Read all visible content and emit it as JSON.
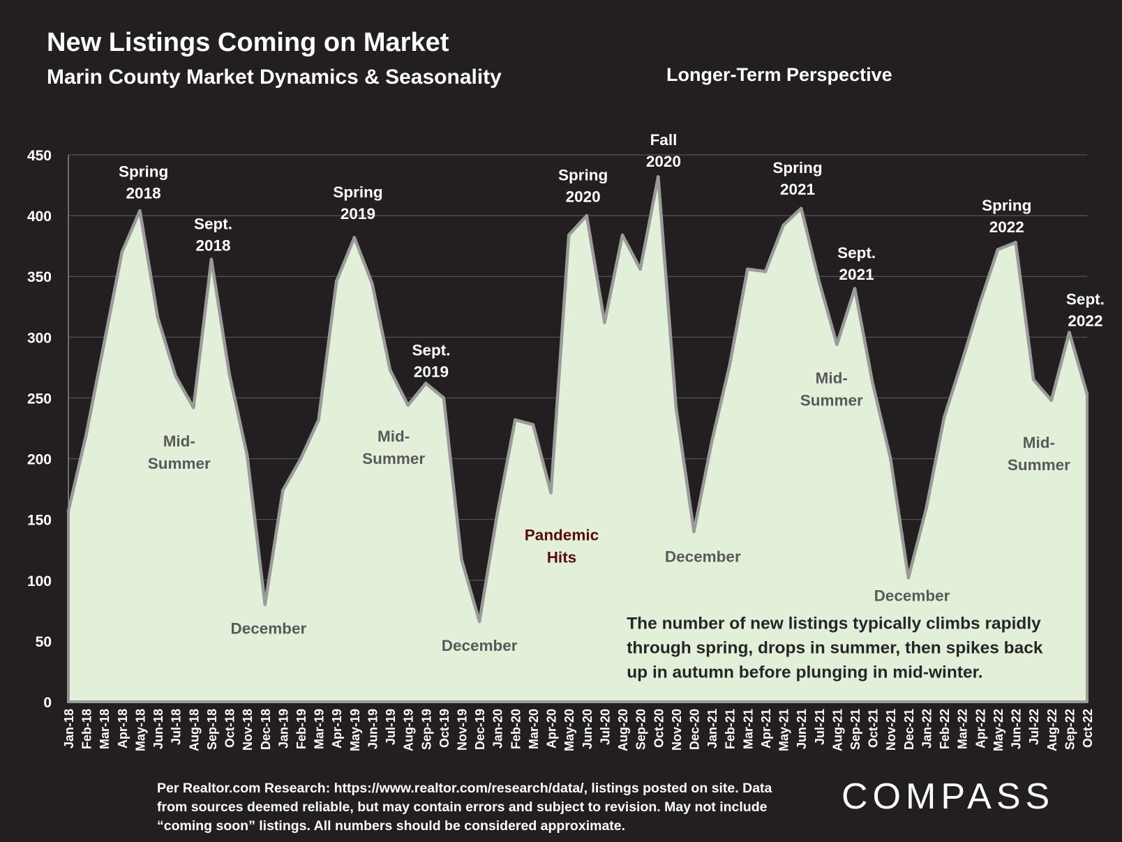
{
  "title": "New Listings Coming on Market",
  "subtitle": "Marin County Market Dynamics & Seasonality",
  "perspective": "Longer-Term Perspective",
  "source_note": "Per Realtor.com Research:  https://www.realtor.com/research/data/, listings posted on site. Data from sources deemed reliable, but may contain errors and subject to revision. May not include “coming soon” listings. All numbers should be considered approximate.",
  "logo": "COMPASS",
  "colors": {
    "background": "#231f20",
    "area_fill": "#e2efd9",
    "line": "#9b9b9b",
    "peak_label": "#ffffff",
    "trough_label": "#595959",
    "pandemic_label": "#5c0a0a",
    "note_text": "#262626"
  },
  "chart_data": {
    "type": "area",
    "ylim": [
      0,
      450
    ],
    "yticks": [
      0,
      50,
      100,
      150,
      200,
      250,
      300,
      350,
      400,
      450
    ],
    "grid": true,
    "categories": [
      "Jan-18",
      "Feb-18",
      "Mar-18",
      "Apr-18",
      "May-18",
      "Jun-18",
      "Jul-18",
      "Aug-18",
      "Sep-18",
      "Oct-18",
      "Nov-18",
      "Dec-18",
      "Jan-19",
      "Feb-19",
      "Mar-19",
      "Apr-19",
      "May-19",
      "Jun-19",
      "Jul-19",
      "Aug-19",
      "Sep-19",
      "Oct-19",
      "Nov-19",
      "Dec-19",
      "Jan-20",
      "Feb-20",
      "Mar-20",
      "Apr-20",
      "May-20",
      "Jun-20",
      "Jul-20",
      "Aug-20",
      "Sep-20",
      "Oct-20",
      "Nov-20",
      "Dec-20",
      "Jan-21",
      "Feb-21",
      "Mar-21",
      "Apr-21",
      "May-21",
      "Jun-21",
      "Jul-21",
      "Aug-21",
      "Sep-21",
      "Oct-21",
      "Nov-21",
      "Dec-21",
      "Jan-22",
      "Feb-22",
      "Mar-22",
      "Apr-22",
      "May-22",
      "Jun-22",
      "Jul-22",
      "Aug-22",
      "Sep-22",
      "Oct-22"
    ],
    "series": [
      {
        "values": [
          157,
          220,
          295,
          370,
          404,
          316,
          268,
          242,
          364,
          270,
          203,
          80,
          174,
          200,
          232,
          346,
          382,
          344,
          273,
          244,
          262,
          250,
          117,
          66,
          155,
          232,
          228,
          172,
          384,
          400,
          312,
          384,
          356,
          432,
          242,
          140,
          214,
          277,
          356,
          354,
          392,
          406,
          346,
          294,
          340,
          262,
          200,
          102,
          159,
          234,
          280,
          328,
          372,
          378,
          265,
          248,
          304,
          253
        ]
      }
    ],
    "annotations": [
      {
        "text": [
          "Spring",
          "2018"
        ],
        "style": "peak",
        "at": 4.2,
        "value": 432
      },
      {
        "text": [
          "Sept.",
          "2018"
        ],
        "style": "peak",
        "at": 8.1,
        "value": 389
      },
      {
        "text": [
          "Mid-",
          "Summer"
        ],
        "style": "trough",
        "at": 6.2,
        "value": 210
      },
      {
        "text": [
          "December"
        ],
        "style": "trough",
        "at": 11.2,
        "value": 56
      },
      {
        "text": [
          "Spring",
          "2019"
        ],
        "style": "peak",
        "at": 16.2,
        "value": 415
      },
      {
        "text": [
          "Mid-",
          "Summer"
        ],
        "style": "trough",
        "at": 18.2,
        "value": 214
      },
      {
        "text": [
          "Sept.",
          "2019"
        ],
        "style": "peak",
        "at": 20.3,
        "value": 285
      },
      {
        "text": [
          "December"
        ],
        "style": "trough",
        "at": 23.0,
        "value": 42
      },
      {
        "text": [
          "Pandemic",
          "Hits"
        ],
        "style": "pandemic",
        "at": 27.6,
        "value": 133
      },
      {
        "text": [
          "Spring",
          "2020"
        ],
        "style": "peak",
        "at": 28.8,
        "value": 429
      },
      {
        "text": [
          "Fall",
          "2020"
        ],
        "style": "peak",
        "at": 33.3,
        "value": 458
      },
      {
        "text": [
          "December"
        ],
        "style": "trough",
        "at": 35.5,
        "value": 115
      },
      {
        "text": [
          "Spring",
          "2021"
        ],
        "style": "peak",
        "at": 40.8,
        "value": 435
      },
      {
        "text": [
          "Sept.",
          "2021"
        ],
        "style": "peak",
        "at": 44.1,
        "value": 365
      },
      {
        "text": [
          "Mid-",
          "Summer"
        ],
        "style": "trough",
        "at": 42.7,
        "value": 262
      },
      {
        "text": [
          "December"
        ],
        "style": "trough",
        "at": 47.2,
        "value": 83
      },
      {
        "text": [
          "Spring",
          "2022"
        ],
        "style": "peak",
        "at": 52.5,
        "value": 404
      },
      {
        "text": [
          "Mid-",
          "Summer"
        ],
        "style": "trough",
        "at": 54.3,
        "value": 209
      },
      {
        "text": [
          "Sept.",
          "2022"
        ],
        "style": "peak",
        "at": 56.9,
        "value": 327
      }
    ],
    "note": {
      "lines": [
        "The number of new listings typically climbs rapidly",
        "through spring, drops in summer, then spikes back",
        "up in autumn before plunging in mid-winter."
      ],
      "at": 30.5,
      "value": 60
    }
  }
}
